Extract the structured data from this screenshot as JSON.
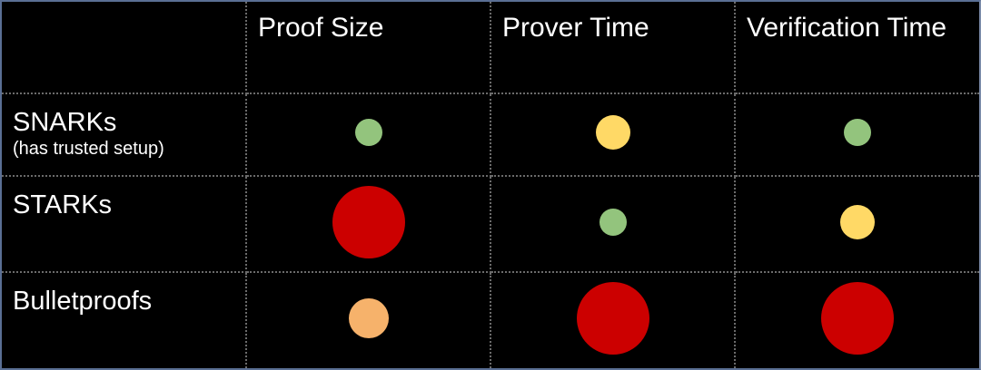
{
  "columns": [
    "",
    "Proof Size",
    "Prover Time",
    "Verification Time"
  ],
  "colors": {
    "good": "#93c47d",
    "ok": "#ffd966",
    "meh": "#f6b26b",
    "bad": "#cc0000"
  },
  "rows": [
    {
      "name": "SNARKs",
      "note": "(has trusted setup)",
      "cells": [
        {
          "rating": "good",
          "level": 1
        },
        {
          "rating": "ok",
          "level": 2
        },
        {
          "rating": "good",
          "level": 1
        }
      ]
    },
    {
      "name": "STARKs",
      "note": "",
      "cells": [
        {
          "rating": "bad",
          "level": 4
        },
        {
          "rating": "good",
          "level": 1
        },
        {
          "rating": "ok",
          "level": 2
        }
      ]
    },
    {
      "name": "Bulletproofs",
      "note": "",
      "cells": [
        {
          "rating": "meh",
          "level": 3
        },
        {
          "rating": "bad",
          "level": 4
        },
        {
          "rating": "bad",
          "level": 4
        }
      ]
    }
  ]
}
